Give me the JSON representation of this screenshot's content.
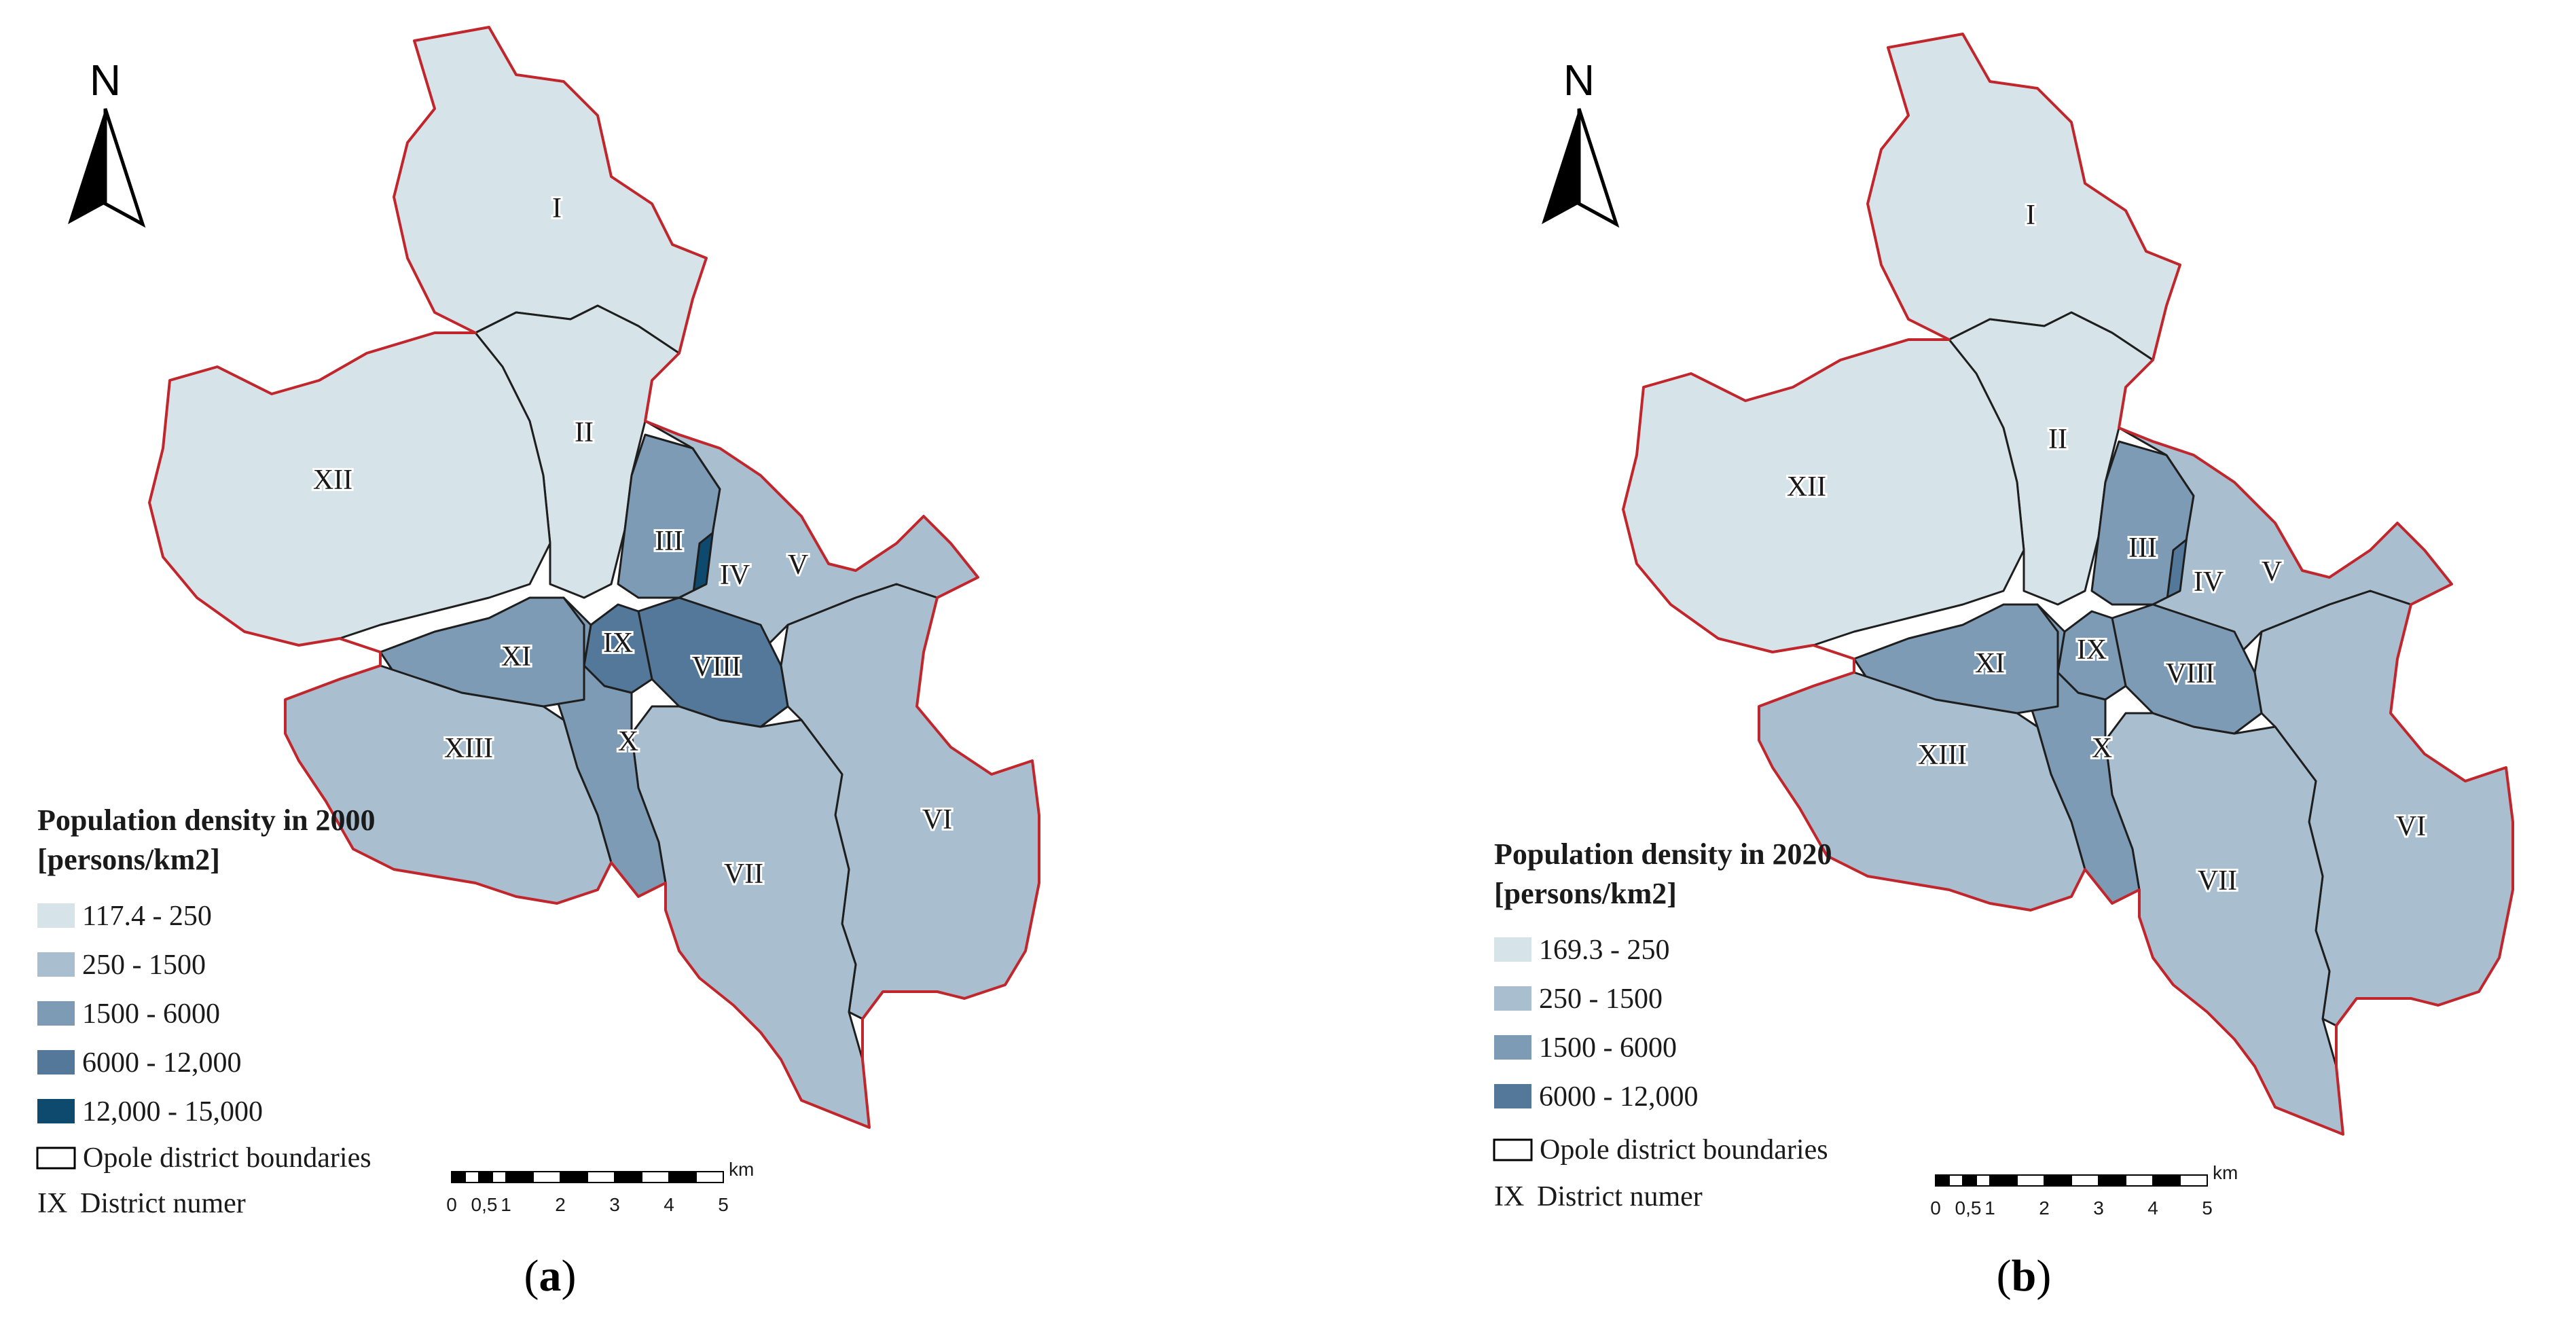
{
  "maps": [
    {
      "id": "a",
      "legend_title_line1": "Population density in 2000",
      "legend_title_line2": "[persons/km2]",
      "classes": [
        {
          "label": "117.4 - 250",
          "color": "#d6e4ea"
        },
        {
          "label": "250 - 1500",
          "color": "#a9bfcf"
        },
        {
          "label": "1500 - 6000",
          "color": "#7d9bb5"
        },
        {
          "label": "6000 - 12,000",
          "color": "#53789a"
        },
        {
          "label": "12,000 - 15,000",
          "color": "#0e4a6e"
        }
      ],
      "boundaries_label": "Opole district boundaries",
      "district_number_key": "IX",
      "district_number_label": "District numer",
      "north": "N",
      "scale_unit": "km",
      "scale_ticks": [
        "0",
        "0,5",
        "1",
        "2",
        "3",
        "4",
        "5"
      ],
      "caption_open": "(",
      "caption_letter": "a",
      "caption_close": ")",
      "districts": [
        {
          "label": "I",
          "class": 0
        },
        {
          "label": "II",
          "class": 0
        },
        {
          "label": "III",
          "class": 2
        },
        {
          "label": "IV",
          "class": 4
        },
        {
          "label": "V",
          "class": 1
        },
        {
          "label": "VI",
          "class": 1
        },
        {
          "label": "VII",
          "class": 1
        },
        {
          "label": "VIII",
          "class": 3
        },
        {
          "label": "IX",
          "class": 3
        },
        {
          "label": "X",
          "class": 2
        },
        {
          "label": "XI",
          "class": 2
        },
        {
          "label": "XII",
          "class": 0
        },
        {
          "label": "XIII",
          "class": 1
        }
      ]
    },
    {
      "id": "b",
      "legend_title_line1": "Population density in 2020",
      "legend_title_line2": "[persons/km2]",
      "classes": [
        {
          "label": "169.3 - 250",
          "color": "#d6e4ea"
        },
        {
          "label": "250 - 1500",
          "color": "#a9bfcf"
        },
        {
          "label": "1500 - 6000",
          "color": "#7d9bb5"
        },
        {
          "label": "6000 - 12,000",
          "color": "#53789a"
        }
      ],
      "boundaries_label": "Opole district boundaries",
      "district_number_key": "IX",
      "district_number_label": "District numer",
      "north": "N",
      "scale_unit": "km",
      "scale_ticks": [
        "0",
        "0,5",
        "1",
        "2",
        "3",
        "4",
        "5"
      ],
      "caption_open": "(",
      "caption_letter": "b",
      "caption_close": ")",
      "districts": [
        {
          "label": "I",
          "class": 0
        },
        {
          "label": "II",
          "class": 0
        },
        {
          "label": "III",
          "class": 2
        },
        {
          "label": "IV",
          "class": 3
        },
        {
          "label": "V",
          "class": 1
        },
        {
          "label": "VI",
          "class": 1
        },
        {
          "label": "VII",
          "class": 1
        },
        {
          "label": "VIII",
          "class": 2
        },
        {
          "label": "IX",
          "class": 2
        },
        {
          "label": "X",
          "class": 2
        },
        {
          "label": "XI",
          "class": 2
        },
        {
          "label": "XII",
          "class": 0
        },
        {
          "label": "XIII",
          "class": 1
        }
      ]
    }
  ]
}
